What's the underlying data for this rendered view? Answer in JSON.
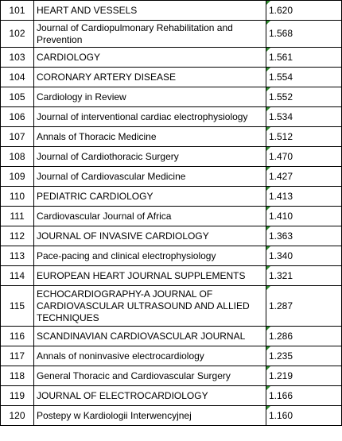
{
  "table": {
    "rows": [
      {
        "rank": "101",
        "title": "HEART AND VESSELS",
        "score": "1.620",
        "lines": 1
      },
      {
        "rank": "102",
        "title": "Journal of Cardiopulmonary Rehabilitation and Prevention",
        "score": "1.568",
        "lines": 2
      },
      {
        "rank": "103",
        "title": "CARDIOLOGY",
        "score": "1.561",
        "lines": 1
      },
      {
        "rank": "104",
        "title": "CORONARY ARTERY DISEASE",
        "score": "1.554",
        "lines": 1
      },
      {
        "rank": "105",
        "title": "Cardiology in Review",
        "score": "1.552",
        "lines": 1
      },
      {
        "rank": "106",
        "title": "Journal of interventional cardiac electrophysiology",
        "score": "1.534",
        "lines": 1
      },
      {
        "rank": "107",
        "title": "Annals of Thoracic Medicine",
        "score": "1.512",
        "lines": 1
      },
      {
        "rank": "108",
        "title": "Journal of Cardiothoracic Surgery",
        "score": "1.470",
        "lines": 1
      },
      {
        "rank": "109",
        "title": "Journal of Cardiovascular Medicine",
        "score": "1.427",
        "lines": 1
      },
      {
        "rank": "110",
        "title": "PEDIATRIC CARDIOLOGY",
        "score": "1.413",
        "lines": 1
      },
      {
        "rank": "111",
        "title": "Cardiovascular Journal of Africa",
        "score": "1.410",
        "lines": 1
      },
      {
        "rank": "112",
        "title": "JOURNAL OF INVASIVE CARDIOLOGY",
        "score": "1.363",
        "lines": 1
      },
      {
        "rank": "113",
        "title": "Pace-pacing and clinical electrophysiology",
        "score": "1.340",
        "lines": 1
      },
      {
        "rank": "114",
        "title": "EUROPEAN HEART JOURNAL SUPPLEMENTS",
        "score": "1.321",
        "lines": 1
      },
      {
        "rank": "115",
        "title": "ECHOCARDIOGRAPHY-A JOURNAL OF CARDIOVASCULAR ULTRASOUND AND ALLIED TECHNIQUES",
        "score": "1.287",
        "lines": 3
      },
      {
        "rank": "116",
        "title": "SCANDINAVIAN CARDIOVASCULAR JOURNAL",
        "score": "1.286",
        "lines": 1
      },
      {
        "rank": "117",
        "title": "Annals of noninvasive electrocardiology",
        "score": "1.235",
        "lines": 1
      },
      {
        "rank": "118",
        "title": "General Thoracic and Cardiovascular Surgery",
        "score": "1.219",
        "lines": 1
      },
      {
        "rank": "119",
        "title": "JOURNAL OF ELECTROCARDIOLOGY",
        "score": "1.166",
        "lines": 1
      },
      {
        "rank": "120",
        "title": "Postepy w Kardiologii Interwencyjnej",
        "score": "1.160",
        "lines": 1
      }
    ]
  },
  "colors": {
    "border": "#000000",
    "cell_marker": "#2e8b2e"
  }
}
